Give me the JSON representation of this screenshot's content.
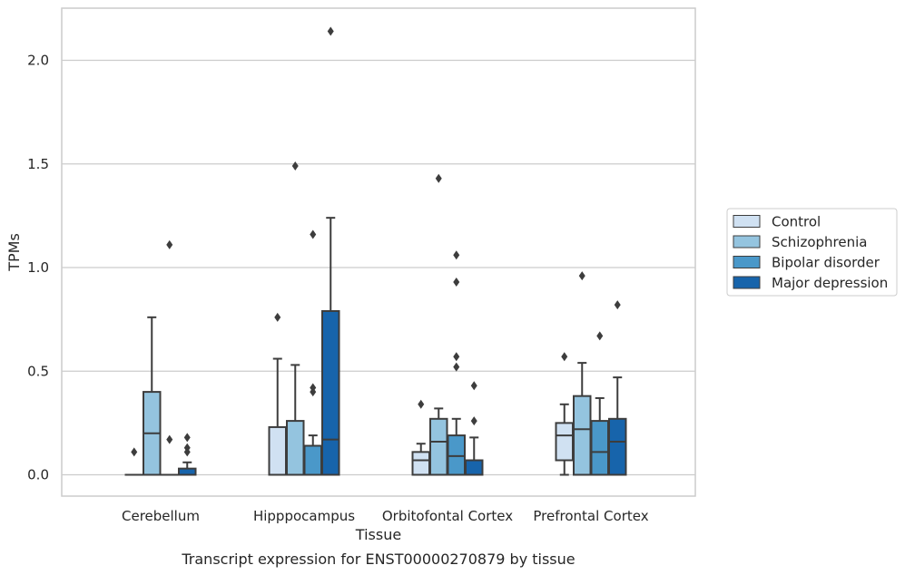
{
  "chart_data": {
    "type": "box",
    "caption": "Transcript expression for ENST00000270879 by tissue",
    "xlabel": "Tissue",
    "ylabel": "TPMs",
    "ylim": [
      -0.1,
      2.25
    ],
    "yticks": [
      "0.0",
      "0.5",
      "1.0",
      "1.5",
      "2.0"
    ],
    "ytick_values": [
      0.0,
      0.5,
      1.0,
      1.5,
      2.0
    ],
    "grid": "horizontal",
    "legend_position": "right",
    "categories": [
      "Cerebellum",
      "Hipppocampus",
      "Orbitofontal Cortex",
      "Prefrontal Cortex"
    ],
    "series": [
      {
        "name": "Control",
        "color": "#d0e1f2",
        "boxes": [
          {
            "whislo": 0,
            "q1": 0,
            "med": 0,
            "q3": 0,
            "whishi": 0,
            "fliers": [
              0.11
            ]
          },
          {
            "whislo": 0,
            "q1": 0,
            "med": 0,
            "q3": 0.23,
            "whishi": 0.56,
            "fliers": [
              0.76
            ]
          },
          {
            "whislo": 0,
            "q1": 0,
            "med": 0.07,
            "q3": 0.11,
            "whishi": 0.15,
            "fliers": [
              0.34
            ]
          },
          {
            "whislo": 0,
            "q1": 0.07,
            "med": 0.19,
            "q3": 0.25,
            "whishi": 0.34,
            "fliers": [
              0.57
            ]
          }
        ]
      },
      {
        "name": "Schizophrenia",
        "color": "#94c4df",
        "boxes": [
          {
            "whislo": 0,
            "q1": 0,
            "med": 0.2,
            "q3": 0.4,
            "whishi": 0.76,
            "fliers": []
          },
          {
            "whislo": 0,
            "q1": 0,
            "med": 0,
            "q3": 0.26,
            "whishi": 0.53,
            "fliers": [
              1.49
            ]
          },
          {
            "whislo": 0,
            "q1": 0,
            "med": 0.16,
            "q3": 0.27,
            "whishi": 0.32,
            "fliers": [
              1.43
            ]
          },
          {
            "whislo": 0,
            "q1": 0,
            "med": 0.22,
            "q3": 0.38,
            "whishi": 0.54,
            "fliers": [
              0.96
            ]
          }
        ]
      },
      {
        "name": "Bipolar disorder",
        "color": "#4a98c9",
        "boxes": [
          {
            "whislo": 0,
            "q1": 0,
            "med": 0,
            "q3": 0,
            "whishi": 0,
            "fliers": [
              0.17,
              1.11
            ]
          },
          {
            "whislo": 0,
            "q1": 0,
            "med": 0,
            "q3": 0.14,
            "whishi": 0.19,
            "fliers": [
              0.4,
              0.42,
              1.16
            ]
          },
          {
            "whislo": 0,
            "q1": 0,
            "med": 0.09,
            "q3": 0.19,
            "whishi": 0.27,
            "fliers": [
              0.52,
              0.57,
              0.93,
              1.06
            ]
          },
          {
            "whislo": 0,
            "q1": 0,
            "med": 0.11,
            "q3": 0.26,
            "whishi": 0.37,
            "fliers": [
              0.67
            ]
          }
        ]
      },
      {
        "name": "Major depression",
        "color": "#1764ab",
        "boxes": [
          {
            "whislo": 0,
            "q1": 0,
            "med": 0,
            "q3": 0.03,
            "whishi": 0.06,
            "fliers": [
              0.11,
              0.13,
              0.18
            ]
          },
          {
            "whislo": 0,
            "q1": 0,
            "med": 0.17,
            "q3": 0.79,
            "whishi": 1.24,
            "fliers": [
              2.14
            ]
          },
          {
            "whislo": 0,
            "q1": 0,
            "med": 0,
            "q3": 0.07,
            "whishi": 0.18,
            "fliers": [
              0.26,
              0.43
            ]
          },
          {
            "whislo": 0,
            "q1": 0,
            "med": 0.16,
            "q3": 0.27,
            "whishi": 0.47,
            "fliers": [
              0.82
            ]
          }
        ]
      }
    ]
  }
}
